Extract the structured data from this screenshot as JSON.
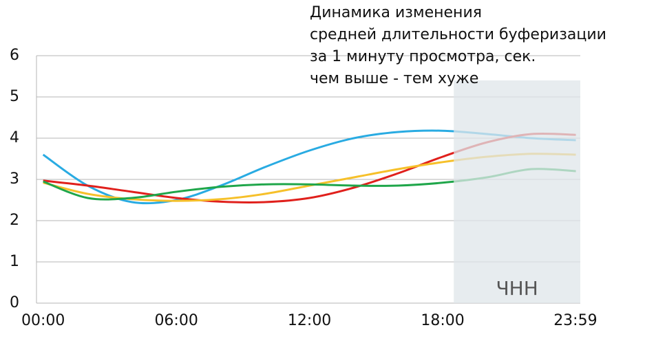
{
  "chart_data": {
    "type": "line",
    "title": [
      "Динамика изменения",
      "средней длительности буферизации",
      "за 1 минуту просмотра, сек.",
      "чем выше - тем хуже"
    ],
    "x": [
      0,
      2,
      4,
      6,
      8,
      10,
      12,
      14,
      16,
      18,
      20,
      22,
      24
    ],
    "xlim": [
      -0.3,
      24.2
    ],
    "xticks": [
      {
        "value": 0,
        "label": "00:00"
      },
      {
        "value": 6,
        "label": "06:00"
      },
      {
        "value": 12,
        "label": "12:00"
      },
      {
        "value": 18,
        "label": "18:00"
      },
      {
        "value": 23.98,
        "label": "23:59"
      }
    ],
    "ylim": [
      0,
      6
    ],
    "yticks": [
      0,
      1,
      2,
      3,
      4,
      5,
      6
    ],
    "grid": true,
    "highlight": {
      "label": "ЧНН",
      "xrange": [
        18.5,
        24.2
      ],
      "ytop": 5.4,
      "color": "#dfe6ea"
    },
    "series": [
      {
        "color": "#29abe2",
        "values": [
          3.6,
          2.85,
          2.45,
          2.5,
          2.85,
          3.3,
          3.7,
          4.0,
          4.15,
          4.18,
          4.1,
          4.0,
          3.95
        ]
      },
      {
        "color": "#e0201c",
        "values": [
          2.97,
          2.85,
          2.7,
          2.55,
          2.46,
          2.45,
          2.55,
          2.8,
          3.15,
          3.55,
          3.9,
          4.1,
          4.08
        ]
      },
      {
        "color": "#f6c02a",
        "values": [
          2.92,
          2.65,
          2.52,
          2.48,
          2.52,
          2.65,
          2.85,
          3.05,
          3.25,
          3.42,
          3.55,
          3.62,
          3.6
        ]
      },
      {
        "color": "#1fa64a",
        "values": [
          2.95,
          2.55,
          2.55,
          2.7,
          2.82,
          2.88,
          2.88,
          2.85,
          2.85,
          2.92,
          3.05,
          3.25,
          3.2
        ]
      }
    ]
  }
}
